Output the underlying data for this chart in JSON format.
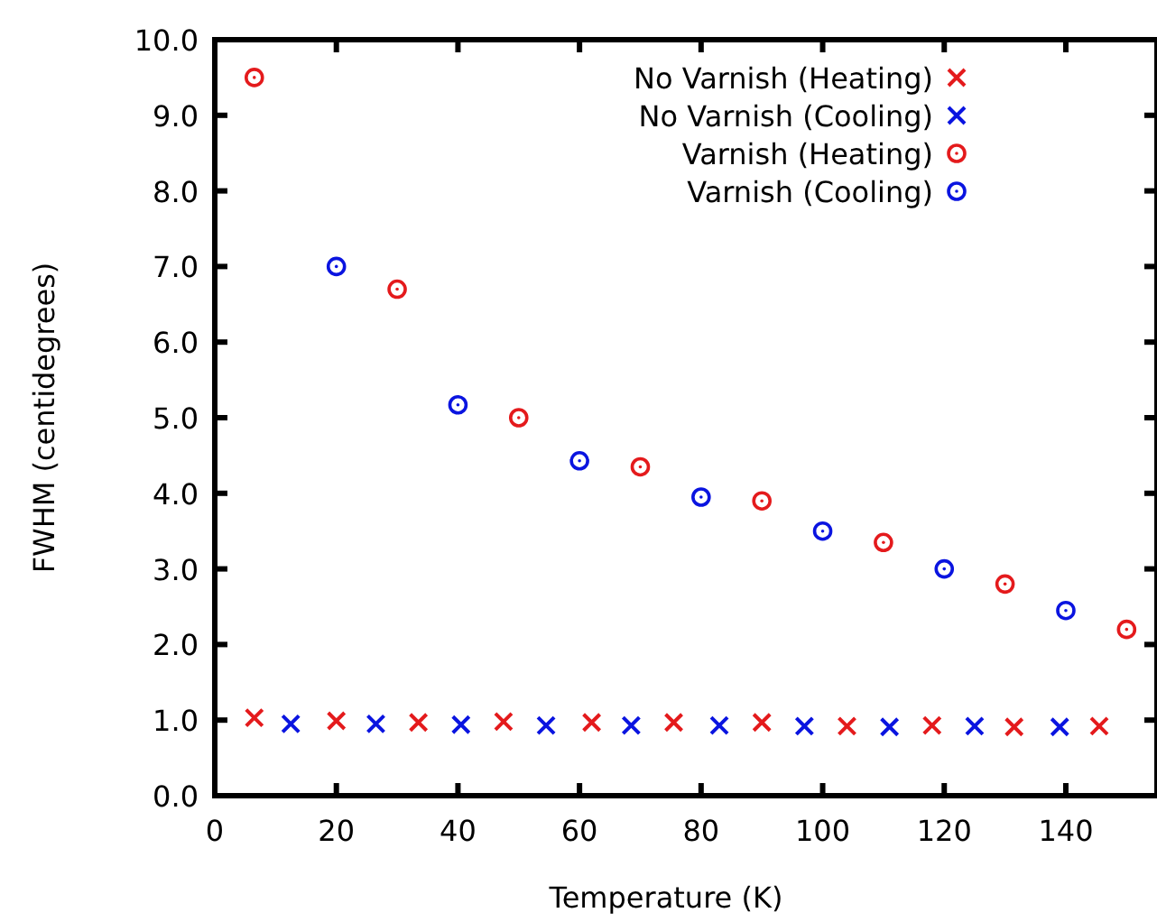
{
  "chart_data": {
    "type": "scatter",
    "xlabel": "Temperature (K)",
    "ylabel": "FWHM (centidegrees)",
    "xlim": [
      0,
      155
    ],
    "xticks": [
      0,
      20,
      40,
      60,
      80,
      100,
      120,
      140
    ],
    "ylim": [
      0,
      10
    ],
    "yticks": [
      {
        "value": 0,
        "label": "0.0"
      },
      {
        "value": 1,
        "label": "1.0"
      },
      {
        "value": 2,
        "label": "2.0"
      },
      {
        "value": 3,
        "label": "3.0"
      },
      {
        "value": 4,
        "label": "4.0"
      },
      {
        "value": 5,
        "label": "5.0"
      },
      {
        "value": 6,
        "label": "6.0"
      },
      {
        "value": 7,
        "label": "7.0"
      },
      {
        "value": 8,
        "label": "8.0"
      },
      {
        "value": 9,
        "label": "9.0"
      },
      {
        "value": 10,
        "label": "10.0"
      }
    ],
    "grid": false,
    "legend": "top right",
    "series": [
      {
        "name": "No Varnish (Heating)",
        "color": "#e41a1c",
        "marker": "cross",
        "x": [
          6.5,
          20,
          33.5,
          47.5,
          62,
          75.5,
          90,
          104,
          118,
          131.5,
          145.5
        ],
        "values": [
          1.03,
          0.99,
          0.97,
          0.98,
          0.97,
          0.97,
          0.97,
          0.92,
          0.93,
          0.91,
          0.92
        ]
      },
      {
        "name": "No Varnish (Cooling)",
        "color": "#0a14e0",
        "marker": "cross",
        "x": [
          12.5,
          26.5,
          40.5,
          54.5,
          68.5,
          83,
          97,
          111,
          125,
          139
        ],
        "values": [
          0.95,
          0.95,
          0.94,
          0.93,
          0.93,
          0.93,
          0.92,
          0.91,
          0.92,
          0.91
        ]
      },
      {
        "name": "Varnish (Heating)",
        "color": "#e41a1c",
        "marker": "circle",
        "x": [
          6.5,
          30,
          50,
          70,
          90,
          110,
          130,
          150
        ],
        "values": [
          9.5,
          6.7,
          5.0,
          4.35,
          3.9,
          3.35,
          2.8,
          2.2
        ]
      },
      {
        "name": "Varnish (Cooling)",
        "color": "#0a14e0",
        "marker": "circle",
        "x": [
          20,
          40,
          60,
          80,
          100,
          120,
          140
        ],
        "values": [
          7.0,
          5.17,
          4.43,
          3.95,
          3.5,
          3.0,
          2.45
        ]
      }
    ]
  }
}
